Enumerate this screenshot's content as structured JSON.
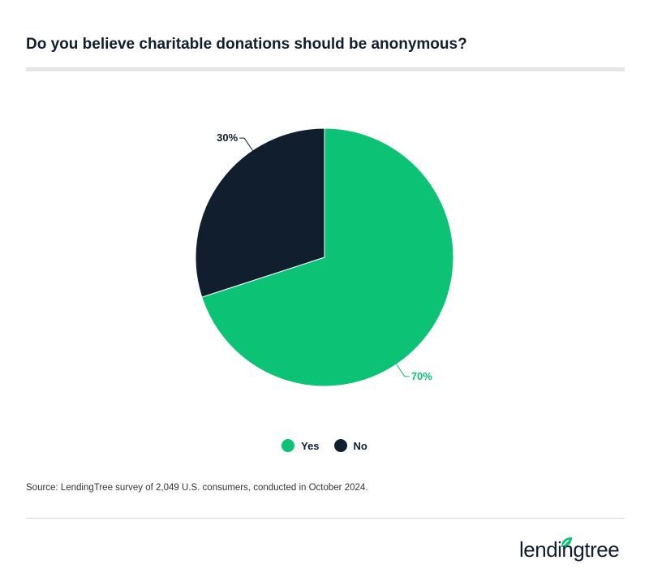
{
  "title": "Do you believe charitable donations should be anonymous?",
  "source": "Source: LendingTree survey of 2,049 U.S. consumers, conducted in October 2024.",
  "logo_text": "lendingtree",
  "colors": {
    "Yes": "#0bc275",
    "No": "#111e2e"
  },
  "chart_data": {
    "type": "pie",
    "title": "Do you believe charitable donations should be anonymous?",
    "categories": [
      "Yes",
      "No"
    ],
    "values": [
      70,
      30
    ],
    "data_labels": [
      "70%",
      "30%"
    ],
    "legend": "bottom",
    "start": "top, clockwise"
  }
}
